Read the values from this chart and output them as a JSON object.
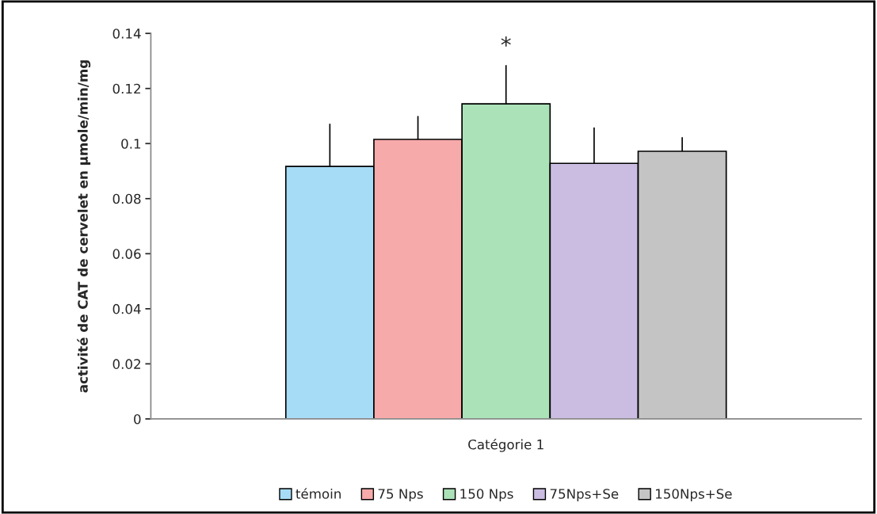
{
  "chart_data": {
    "type": "bar",
    "categories": [
      "Catégorie 1"
    ],
    "ylabel": "activité de CAT de cervelet en µmole/min/mg",
    "ylim": [
      0,
      0.14
    ],
    "yticks": [
      {
        "value": 0,
        "label": "0"
      },
      0.02,
      0.04,
      0.06,
      0.08,
      0.1,
      0.12,
      0.14
    ],
    "series": [
      {
        "name": "témoin",
        "color": "#a7dcf7",
        "values": [
          0.0917
        ],
        "errors": [
          [
            0.0917,
            0.1072
          ]
        ]
      },
      {
        "name": "75 Nps",
        "color": "#f7aaaa",
        "values": [
          0.1015
        ],
        "errors": [
          [
            0.1015,
            0.11
          ]
        ]
      },
      {
        "name": "150 Nps",
        "color": "#abe2b8",
        "values": [
          0.1144
        ],
        "errors": [
          [
            0.1144,
            0.1285
          ]
        ]
      },
      {
        "name": "75Nps+Se",
        "color": "#cbbde2",
        "values": [
          0.0928
        ],
        "errors": [
          [
            0.0928,
            0.1058
          ]
        ]
      },
      {
        "name": "150Nps+Se",
        "color": "#c4c4c4",
        "values": [
          0.0972
        ],
        "errors": [
          [
            0.0972,
            0.1023
          ]
        ]
      }
    ],
    "annotations": [
      "*"
    ],
    "grid": false,
    "legend": "bottom"
  }
}
